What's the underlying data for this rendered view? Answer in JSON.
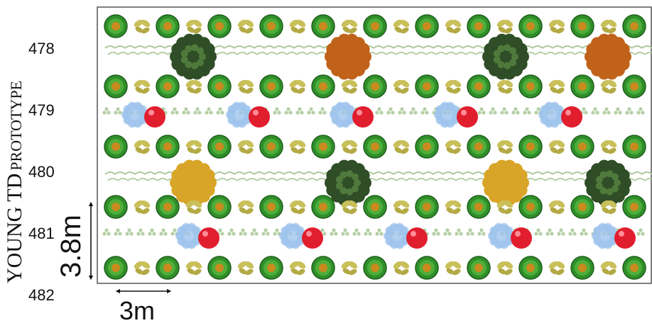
{
  "title_prefix": "YOUNG TD",
  "title_suffix": "PROTOTYPE",
  "row_labels": [
    "478",
    "479",
    "480",
    "481",
    "482"
  ],
  "scale_vertical": "3.8m",
  "scale_horizontal": "3m",
  "colors": {
    "border": "#555555",
    "green_disc": "#2f8f2a",
    "green_disc_center": "#c98a1e",
    "yellow_leaf": "#c9c05a",
    "grass": "#a9c79a",
    "dark_tree": "#2f4d26",
    "brown_shrub": "#c0621a",
    "gold_shrub": "#d9a528",
    "blue_flower": "#9ec3ec",
    "red_ball": "#e01e2e",
    "light_clover": "#b5cfa6"
  },
  "rows": [
    {
      "type": "pot",
      "id": "pot-row-1"
    },
    {
      "type": "grass-shrub",
      "id": "shrub-row-478",
      "shrubs": [
        "dark-tree",
        "brown-shrub",
        "dark-tree",
        "brown-shrub"
      ]
    },
    {
      "type": "pot",
      "id": "pot-row-2"
    },
    {
      "type": "clover-flower",
      "id": "flower-row-479",
      "count": 5
    },
    {
      "type": "pot",
      "id": "pot-row-3"
    },
    {
      "type": "grass-shrub",
      "id": "shrub-row-480",
      "shrubs": [
        "gold-shrub",
        "dark-tree",
        "gold-shrub",
        "dark-tree"
      ]
    },
    {
      "type": "pot",
      "id": "pot-row-4"
    },
    {
      "type": "clover-flower",
      "id": "flower-row-481",
      "count": 5
    },
    {
      "type": "pot",
      "id": "pot-row-5"
    }
  ]
}
